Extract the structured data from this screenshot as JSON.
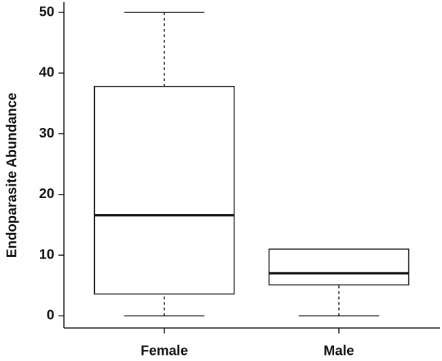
{
  "chart_data": {
    "type": "box",
    "y_label": "Endoparasite Abundance",
    "categories": [
      "Female",
      "Male"
    ],
    "min": [
      0,
      0
    ],
    "q1": [
      3.6,
      5.1
    ],
    "median": [
      16.6,
      7.0
    ],
    "q3": [
      37.8,
      11.0
    ],
    "max": [
      50,
      11.0
    ],
    "color": "#111111",
    "ylim": [
      -2,
      51.7
    ],
    "yticks": [
      0,
      10,
      20,
      30,
      40,
      50
    ]
  }
}
